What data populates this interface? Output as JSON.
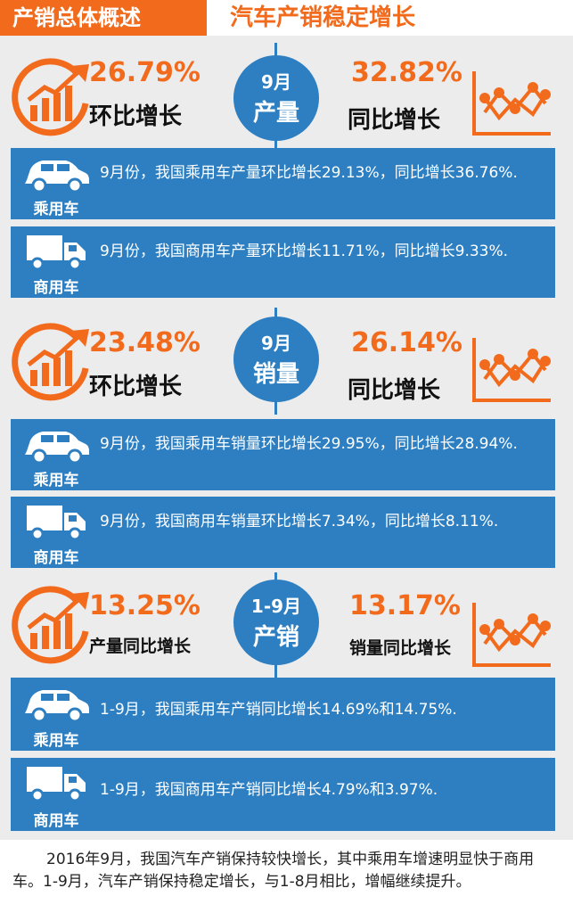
{
  "header": {
    "left_title": "产销总体概述",
    "right_title": "汽车产销稳定增长"
  },
  "sections": [
    {
      "circle": {
        "line1": "9月",
        "line2": "产量"
      },
      "left": {
        "pct": "26.79%",
        "label": "环比增长"
      },
      "right": {
        "pct": "32.82%",
        "label": "同比增长"
      },
      "cards": [
        {
          "icon": "car-icon",
          "label": "乘用车",
          "text": "9月份，我国乘用车产量环比增长29.13%，同比增长36.76%."
        },
        {
          "icon": "truck-icon",
          "label": "商用车",
          "text": "9月份，我国商用车产量环比增长11.71%，同比增长9.33%."
        }
      ]
    },
    {
      "circle": {
        "line1": "9月",
        "line2": "销量"
      },
      "left": {
        "pct": "23.48%",
        "label": "环比增长"
      },
      "right": {
        "pct": "26.14%",
        "label": "同比增长"
      },
      "cards": [
        {
          "icon": "car-icon",
          "label": "乘用车",
          "text": "9月份，我国乘用车销量环比增长29.95%，同比增长28.94%."
        },
        {
          "icon": "truck-icon",
          "label": "商用车",
          "text": "9月份，我国商用车销量环比增长7.34%，同比增长8.11%."
        }
      ]
    },
    {
      "circle": {
        "line1": "1-9月",
        "line2": "产销"
      },
      "left": {
        "pct": "13.25%",
        "label": "产量同比增长"
      },
      "right": {
        "pct": "13.17%",
        "label": "销量同比增长"
      },
      "cards": [
        {
          "icon": "car-icon",
          "label": "乘用车",
          "text": "1-9月，我国乘用车产销同比增长14.69%和14.75%."
        },
        {
          "icon": "truck-icon",
          "label": "商用车",
          "text": "1-9月，我国商用车产销同比增长4.79%和3.97%."
        }
      ]
    }
  ],
  "footer": {
    "text": "2016年9月，我国汽车产销保持较快增长，其中乘用车增速明显快于商用车。1-9月，汽车产销保持稳定增长，与1-8月相比，增幅继续提升。"
  },
  "colors": {
    "accent": "#f26b1d",
    "blue": "#2d7fc1"
  }
}
